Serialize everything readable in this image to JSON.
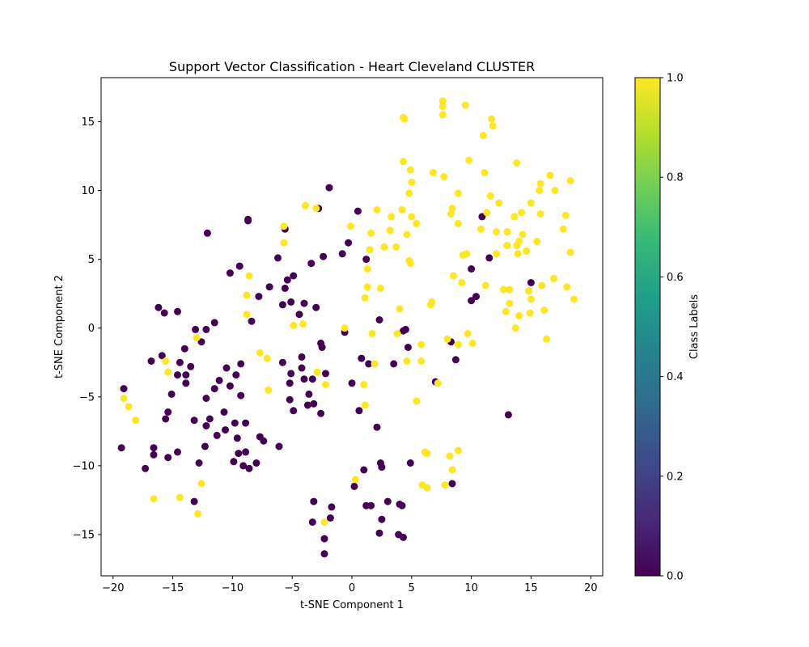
{
  "chart_data": {
    "type": "scatter",
    "title": "Support Vector Classification - Heart Cleveland CLUSTER",
    "xlabel": "t-SNE Component 1",
    "ylabel": "t-SNE Component 2",
    "xlim": [
      -21,
      21
    ],
    "ylim": [
      -18,
      18.2
    ],
    "xticks": [
      -20,
      -15,
      -10,
      -5,
      0,
      5,
      10,
      15,
      20
    ],
    "yticks": [
      -15,
      -10,
      -5,
      0,
      5,
      10,
      15
    ],
    "grid": false,
    "colorbar": {
      "label": "Class Labels",
      "range": [
        0.0,
        1.0
      ],
      "ticks": [
        "0.0",
        "0.2",
        "0.4",
        "0.6",
        "0.8",
        "1.0"
      ],
      "colormap": "viridis",
      "colors": [
        "#440154",
        "#482878",
        "#3e4989",
        "#31688e",
        "#26828e",
        "#1f9e89",
        "#35b779",
        "#6ece58",
        "#b5de2b",
        "#fde725"
      ]
    },
    "series": [
      {
        "class": 0,
        "color": "#440154",
        "points": [
          [
            -19.3,
            -8.7
          ],
          [
            -19.1,
            -4.4
          ],
          [
            -17.3,
            -10.2
          ],
          [
            -16.8,
            -2.4
          ],
          [
            -16.6,
            -8.7
          ],
          [
            -16.6,
            -9.2
          ],
          [
            -16.2,
            1.5
          ],
          [
            -15.9,
            -2.0
          ],
          [
            -15.7,
            1.1
          ],
          [
            -15.6,
            -6.6
          ],
          [
            -15.4,
            -6.1
          ],
          [
            -15.4,
            -9.4
          ],
          [
            -15.1,
            -4.8
          ],
          [
            -14.6,
            1.2
          ],
          [
            -14.6,
            -3.4
          ],
          [
            -14.6,
            -9.0
          ],
          [
            -14.4,
            -2.5
          ],
          [
            -14.0,
            -1.5
          ],
          [
            -13.9,
            -3.4
          ],
          [
            -13.9,
            -4.0
          ],
          [
            -13.5,
            -2.8
          ],
          [
            -13.2,
            -6.7
          ],
          [
            -13.2,
            -12.6
          ],
          [
            -13.1,
            -0.1
          ],
          [
            -12.8,
            -9.8
          ],
          [
            -12.6,
            -1.0
          ],
          [
            -12.3,
            -8.6
          ],
          [
            -12.2,
            -7.1
          ],
          [
            -12.2,
            -5.1
          ],
          [
            -12.2,
            -0.1
          ],
          [
            -12.1,
            6.9
          ],
          [
            -11.9,
            -6.6
          ],
          [
            -11.5,
            0.4
          ],
          [
            -11.5,
            -4.4
          ],
          [
            -11.3,
            -7.8
          ],
          [
            -11.1,
            -3.8
          ],
          [
            -10.7,
            -6.1
          ],
          [
            -10.6,
            -7.4
          ],
          [
            -10.5,
            -2.9
          ],
          [
            -10.2,
            4.0
          ],
          [
            -10.2,
            -4.2
          ],
          [
            -9.9,
            -9.7
          ],
          [
            -9.8,
            -6.9
          ],
          [
            -9.7,
            -3.4
          ],
          [
            -9.6,
            -8.0
          ],
          [
            -9.5,
            -9.1
          ],
          [
            -9.4,
            4.5
          ],
          [
            -9.3,
            -2.6
          ],
          [
            -9.3,
            -4.9
          ],
          [
            -9.1,
            -10.0
          ],
          [
            -8.9,
            -6.9
          ],
          [
            -8.9,
            -9.0
          ],
          [
            -8.7,
            7.8
          ],
          [
            -8.7,
            7.9
          ],
          [
            -8.6,
            -10.2
          ],
          [
            -8.4,
            0.5
          ],
          [
            -8.0,
            -9.8
          ],
          [
            -7.8,
            2.3
          ],
          [
            -7.7,
            -7.9
          ],
          [
            -7.4,
            -8.2
          ],
          [
            -6.9,
            3.0
          ],
          [
            -6.2,
            5.1
          ],
          [
            -6.1,
            -8.6
          ],
          [
            -5.8,
            -2.5
          ],
          [
            -5.8,
            1.7
          ],
          [
            -5.6,
            2.9
          ],
          [
            -5.6,
            7.2
          ],
          [
            -5.4,
            3.5
          ],
          [
            -5.2,
            -4.0
          ],
          [
            -5.2,
            -5.2
          ],
          [
            -5.1,
            1.9
          ],
          [
            -5.1,
            -3.3
          ],
          [
            -4.9,
            -6.0
          ],
          [
            -4.9,
            3.8
          ],
          [
            -4.4,
            1.0
          ],
          [
            -4.2,
            -2.1
          ],
          [
            -4.2,
            -2.9
          ],
          [
            -4.0,
            -3.7
          ],
          [
            -4.0,
            1.8
          ],
          [
            -3.7,
            -5.6
          ],
          [
            -3.6,
            -4.8
          ],
          [
            -3.4,
            4.7
          ],
          [
            -3.3,
            -3.7
          ],
          [
            -3.3,
            -14.1
          ],
          [
            -3.2,
            -12.6
          ],
          [
            -3.2,
            -5.5
          ],
          [
            -3.0,
            1.5
          ],
          [
            -2.8,
            8.7
          ],
          [
            -2.6,
            -6.2
          ],
          [
            -2.6,
            -1.1
          ],
          [
            -2.5,
            -1.4
          ],
          [
            -2.4,
            5.2
          ],
          [
            -2.3,
            -16.4
          ],
          [
            -2.3,
            -15.3
          ],
          [
            -2.2,
            -3.3
          ],
          [
            -1.9,
            10.2
          ],
          [
            -1.8,
            -13.8
          ],
          [
            -1.7,
            -13.0
          ],
          [
            -0.8,
            5.4
          ],
          [
            -0.6,
            -0.3
          ],
          [
            -0.3,
            6.2
          ],
          [
            0.0,
            -4.0
          ],
          [
            0.2,
            -11.5
          ],
          [
            0.5,
            8.5
          ],
          [
            0.6,
            -6.0
          ],
          [
            0.8,
            -2.2
          ],
          [
            1.0,
            -10.3
          ],
          [
            1.2,
            -12.9
          ],
          [
            1.2,
            5.0
          ],
          [
            1.4,
            -2.6
          ],
          [
            1.6,
            -12.9
          ],
          [
            2.1,
            -7.2
          ],
          [
            2.3,
            0.6
          ],
          [
            2.3,
            -14.9
          ],
          [
            2.4,
            -9.8
          ],
          [
            2.5,
            -10.1
          ],
          [
            2.5,
            -13.9
          ],
          [
            3.0,
            -12.6
          ],
          [
            3.5,
            -2.6
          ],
          [
            3.9,
            -15.0
          ],
          [
            4.0,
            -12.8
          ],
          [
            4.2,
            -12.9
          ],
          [
            4.3,
            -0.2
          ],
          [
            4.3,
            -15.2
          ],
          [
            4.5,
            -0.1
          ],
          [
            4.7,
            -1.4
          ],
          [
            4.9,
            -9.8
          ],
          [
            7.0,
            -3.9
          ],
          [
            8.3,
            -1.0
          ],
          [
            8.4,
            -11.3
          ],
          [
            8.7,
            -2.3
          ],
          [
            10.0,
            4.3
          ],
          [
            10.0,
            2.0
          ],
          [
            10.4,
            2.3
          ],
          [
            10.9,
            8.1
          ],
          [
            11.5,
            5.1
          ],
          [
            13.1,
            -6.3
          ],
          [
            15.0,
            3.3
          ]
        ]
      },
      {
        "class": 1,
        "color": "#fde725",
        "points": [
          [
            -19.1,
            -5.1
          ],
          [
            -18.7,
            -5.7
          ],
          [
            -18.1,
            -6.7
          ],
          [
            -16.6,
            -12.4
          ],
          [
            -15.6,
            -2.4
          ],
          [
            -15.4,
            -3.2
          ],
          [
            -14.4,
            -12.3
          ],
          [
            -13.0,
            -0.7
          ],
          [
            -12.9,
            -13.5
          ],
          [
            -12.6,
            -11.3
          ],
          [
            -8.8,
            2.4
          ],
          [
            -8.8,
            1.0
          ],
          [
            -8.6,
            3.8
          ],
          [
            -7.7,
            -1.8
          ],
          [
            -7.1,
            -2.2
          ],
          [
            -7.0,
            -4.5
          ],
          [
            -5.7,
            7.4
          ],
          [
            -5.7,
            6.2
          ],
          [
            -4.9,
            0.2
          ],
          [
            -4.1,
            0.3
          ],
          [
            -3.9,
            8.9
          ],
          [
            -3.0,
            8.7
          ],
          [
            -2.9,
            -3.2
          ],
          [
            -2.3,
            -14.1
          ],
          [
            -2.2,
            -4.1
          ],
          [
            -0.6,
            0.0
          ],
          [
            -0.1,
            7.4
          ],
          [
            0.3,
            -11.0
          ],
          [
            1.0,
            -4.1
          ],
          [
            1.1,
            2.2
          ],
          [
            1.1,
            -5.6
          ],
          [
            1.3,
            3.0
          ],
          [
            1.3,
            4.3
          ],
          [
            1.5,
            5.7
          ],
          [
            1.6,
            6.9
          ],
          [
            1.7,
            -0.4
          ],
          [
            1.9,
            -2.6
          ],
          [
            2.1,
            8.6
          ],
          [
            2.4,
            2.9
          ],
          [
            2.7,
            5.9
          ],
          [
            3.2,
            7.1
          ],
          [
            3.3,
            8.1
          ],
          [
            3.7,
            5.9
          ],
          [
            3.8,
            -0.4
          ],
          [
            4.0,
            1.4
          ],
          [
            4.2,
            8.6
          ],
          [
            4.3,
            12.1
          ],
          [
            4.3,
            15.3
          ],
          [
            4.4,
            15.2
          ],
          [
            4.6,
            -2.4
          ],
          [
            4.6,
            6.8
          ],
          [
            4.8,
            9.8
          ],
          [
            4.8,
            4.9
          ],
          [
            4.9,
            4.7
          ],
          [
            4.9,
            11.5
          ],
          [
            5.0,
            10.6
          ],
          [
            5.0,
            8.1
          ],
          [
            5.4,
            7.6
          ],
          [
            5.4,
            -5.3
          ],
          [
            5.8,
            -2.4
          ],
          [
            5.8,
            -1.2
          ],
          [
            5.9,
            -11.4
          ],
          [
            6.1,
            -9.0
          ],
          [
            6.3,
            -11.6
          ],
          [
            6.3,
            -9.1
          ],
          [
            6.6,
            1.7
          ],
          [
            6.7,
            1.9
          ],
          [
            6.8,
            11.3
          ],
          [
            7.2,
            -4.0
          ],
          [
            7.6,
            16.5
          ],
          [
            7.6,
            16.1
          ],
          [
            7.6,
            15.5
          ],
          [
            7.7,
            11.0
          ],
          [
            7.8,
            -11.4
          ],
          [
            8.0,
            -0.8
          ],
          [
            8.2,
            -9.3
          ],
          [
            8.3,
            8.3
          ],
          [
            8.4,
            8.7
          ],
          [
            8.4,
            -10.3
          ],
          [
            8.5,
            3.8
          ],
          [
            8.9,
            -8.9
          ],
          [
            8.9,
            -1.2
          ],
          [
            8.9,
            7.6
          ],
          [
            8.9,
            9.8
          ],
          [
            9.2,
            3.3
          ],
          [
            9.3,
            5.3
          ],
          [
            9.5,
            16.2
          ],
          [
            9.6,
            5.4
          ],
          [
            9.7,
            -0.4
          ],
          [
            9.8,
            12.2
          ],
          [
            10.1,
            -1.1
          ],
          [
            10.8,
            7.2
          ],
          [
            11.0,
            14.0
          ],
          [
            11.1,
            11.3
          ],
          [
            11.2,
            3.1
          ],
          [
            11.3,
            8.4
          ],
          [
            11.6,
            9.6
          ],
          [
            11.7,
            15.2
          ],
          [
            11.8,
            14.7
          ],
          [
            12.1,
            7.0
          ],
          [
            12.1,
            5.4
          ],
          [
            12.3,
            9.1
          ],
          [
            12.7,
            2.8
          ],
          [
            12.9,
            1.2
          ],
          [
            13.0,
            6.0
          ],
          [
            13.0,
            7.0
          ],
          [
            13.2,
            2.8
          ],
          [
            13.2,
            1.8
          ],
          [
            13.6,
            8.1
          ],
          [
            13.7,
            0.0
          ],
          [
            13.8,
            12.0
          ],
          [
            13.8,
            6.0
          ],
          [
            13.9,
            5.4
          ],
          [
            14.0,
            0.9
          ],
          [
            14.0,
            6.3
          ],
          [
            14.2,
            8.4
          ],
          [
            14.3,
            6.8
          ],
          [
            14.6,
            5.6
          ],
          [
            14.8,
            2.7
          ],
          [
            14.9,
            1.1
          ],
          [
            15.0,
            9.1
          ],
          [
            15.0,
            2.1
          ],
          [
            15.5,
            6.3
          ],
          [
            15.7,
            10.0
          ],
          [
            15.8,
            10.5
          ],
          [
            15.8,
            8.3
          ],
          [
            15.9,
            3.1
          ],
          [
            16.1,
            1.3
          ],
          [
            16.3,
            -0.8
          ],
          [
            16.6,
            11.1
          ],
          [
            16.9,
            3.6
          ],
          [
            17.0,
            10.0
          ],
          [
            17.7,
            7.2
          ],
          [
            17.9,
            8.2
          ],
          [
            18.0,
            3.0
          ],
          [
            18.3,
            5.5
          ],
          [
            18.3,
            10.7
          ],
          [
            18.6,
            2.1
          ]
        ]
      }
    ]
  }
}
